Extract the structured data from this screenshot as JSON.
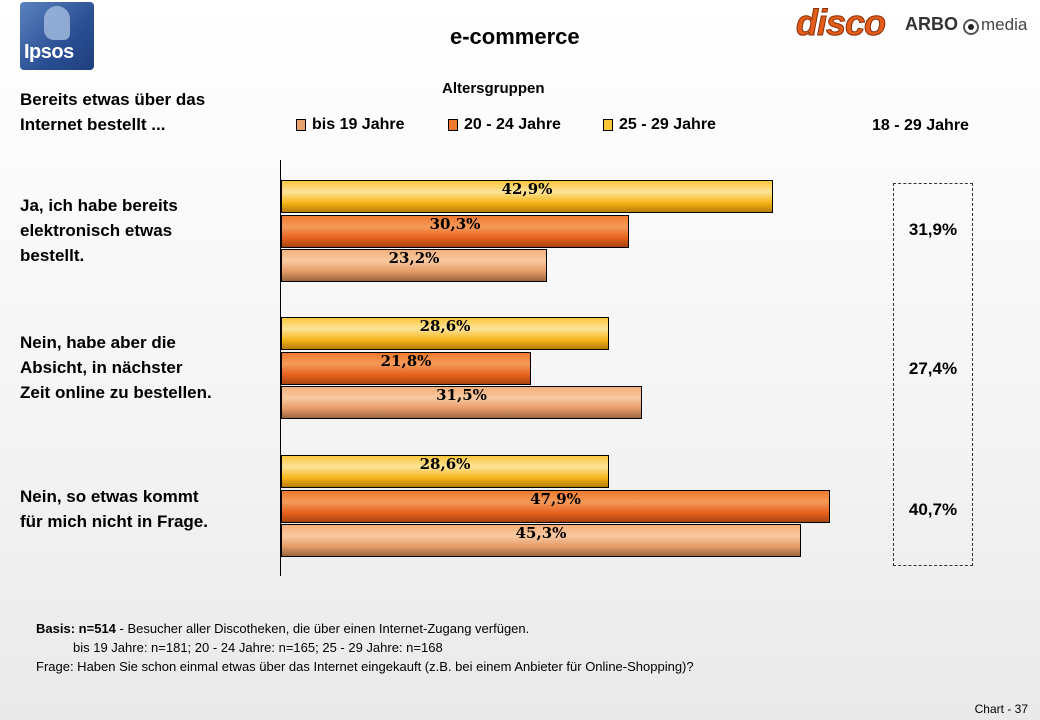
{
  "header": {
    "title": "e-commerce",
    "logo_ipsos": "Ipsos",
    "logo_disco": "disco",
    "logo_arbo": "ARBO",
    "logo_media": "media"
  },
  "left_heading": [
    "Bereits etwas über das",
    "Internet bestellt ..."
  ],
  "questions": [
    [
      "Ja, ich habe bereits",
      "elektronisch etwas",
      "bestellt."
    ],
    [
      "Nein, habe aber die",
      "Absicht, in nächster",
      "Zeit online zu bestellen."
    ],
    [
      "Nein, so etwas kommt",
      "für mich nicht in Frage."
    ]
  ],
  "chart_data": {
    "type": "bar",
    "orientation": "horizontal",
    "legend_title": "Altersgruppen",
    "legend_position": "top",
    "categories": [
      "Ja, ich habe bereits elektronisch etwas bestellt.",
      "Nein, habe aber die Absicht, in nächster Zeit online zu bestellen.",
      "Nein, so etwas kommt für mich nicht in Frage."
    ],
    "series": [
      {
        "name": "25 - 29 Jahre",
        "values": [
          42.9,
          28.6,
          28.6
        ],
        "labels": [
          "42,9%",
          "28,6%",
          "28,6%"
        ],
        "color": "#fbc63a"
      },
      {
        "name": "20 - 24 Jahre",
        "values": [
          30.3,
          21.8,
          47.9
        ],
        "labels": [
          "30,3%",
          "21,8%",
          "47,9%"
        ],
        "color": "#ef7a2e"
      },
      {
        "name": "bis 19 Jahre",
        "values": [
          23.2,
          31.5,
          45.3
        ],
        "labels": [
          "23,2%",
          "31,5%",
          "45,3%"
        ],
        "color": "#e9a06a"
      }
    ],
    "legend_order": [
      "bis 19 Jahre",
      "20 - 24 Jahre",
      "25 - 29 Jahre"
    ],
    "xlim": [
      0,
      60
    ],
    "grid": false,
    "totals": {
      "header": "18 - 29 Jahre",
      "values": [
        31.9,
        27.4,
        40.7
      ],
      "labels": [
        "31,9%",
        "27,4%",
        "40,7%"
      ]
    }
  },
  "footer": {
    "basis_label": "Basis:",
    "basis_n": "n=514",
    "basis_text": " - Besucher aller Discotheken, die über einen Internet-Zugang verfügen.",
    "sample_sizes": "bis 19 Jahre: n=181; 20 - 24 Jahre: n=165; 25 - 29 Jahre: n=168",
    "question": "Frage: Haben Sie schon einmal etwas über das Internet eingekauft (z.B. bei einem Anbieter für Online-Shopping)?",
    "chart_number": "Chart - 37"
  }
}
